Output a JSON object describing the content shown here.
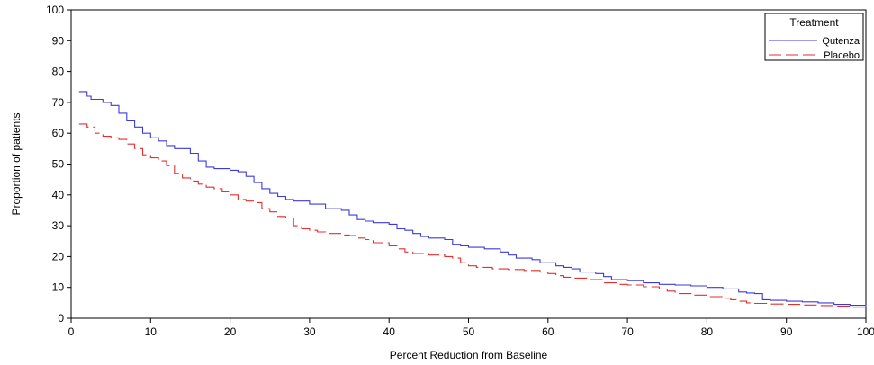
{
  "chart_data": {
    "type": "line",
    "title": "",
    "xlabel": "Percent Reduction from Baseline",
    "ylabel": "Proportion of patients",
    "xlim": [
      0,
      100
    ],
    "ylim": [
      0,
      100
    ],
    "x_ticks": [
      0,
      10,
      20,
      30,
      40,
      50,
      60,
      70,
      80,
      90,
      100
    ],
    "y_ticks": [
      0,
      10,
      20,
      30,
      40,
      50,
      60,
      70,
      80,
      90,
      100
    ],
    "grid": false,
    "legend": {
      "title": "Treatment",
      "placement": "top-right"
    },
    "series": [
      {
        "name": "Qutenza",
        "color": "#3b3bdc",
        "dash": "solid",
        "points": [
          [
            1,
            73.5
          ],
          [
            2,
            72
          ],
          [
            2.5,
            71
          ],
          [
            4,
            70
          ],
          [
            5,
            69
          ],
          [
            6,
            66.5
          ],
          [
            7,
            64
          ],
          [
            8,
            62
          ],
          [
            9,
            60
          ],
          [
            10,
            58.5
          ],
          [
            11,
            57.5
          ],
          [
            12,
            56
          ],
          [
            13,
            55
          ],
          [
            15,
            53.5
          ],
          [
            16,
            51
          ],
          [
            17,
            49
          ],
          [
            18,
            48.5
          ],
          [
            20,
            48
          ],
          [
            21,
            47.5
          ],
          [
            22,
            46
          ],
          [
            23,
            44
          ],
          [
            24,
            42
          ],
          [
            25,
            40.5
          ],
          [
            26,
            39.5
          ],
          [
            27,
            38.5
          ],
          [
            28,
            38
          ],
          [
            30,
            37
          ],
          [
            32,
            35.5
          ],
          [
            34,
            35
          ],
          [
            35,
            33.5
          ],
          [
            36,
            32
          ],
          [
            37,
            31.5
          ],
          [
            38,
            31
          ],
          [
            40,
            30.5
          ],
          [
            41,
            29
          ],
          [
            42,
            28.5
          ],
          [
            43,
            27.5
          ],
          [
            44,
            26.5
          ],
          [
            45,
            26
          ],
          [
            47,
            25.5
          ],
          [
            48,
            24
          ],
          [
            49,
            23.5
          ],
          [
            50,
            23
          ],
          [
            52,
            22.5
          ],
          [
            54,
            21.5
          ],
          [
            55,
            20.5
          ],
          [
            56,
            19.5
          ],
          [
            58,
            19
          ],
          [
            59,
            18
          ],
          [
            61,
            17
          ],
          [
            62,
            16.5
          ],
          [
            63,
            16
          ],
          [
            64,
            15
          ],
          [
            66,
            14.5
          ],
          [
            67,
            13.5
          ],
          [
            68,
            12.5
          ],
          [
            70,
            12.2
          ],
          [
            72,
            11.5
          ],
          [
            74,
            11
          ],
          [
            76,
            10.8
          ],
          [
            78,
            10.5
          ],
          [
            80,
            10
          ],
          [
            82,
            9.5
          ],
          [
            84,
            8.5
          ],
          [
            85,
            8.2
          ],
          [
            86,
            8
          ],
          [
            87,
            6
          ],
          [
            88,
            5.8
          ],
          [
            90,
            5.5
          ],
          [
            92,
            5.3
          ],
          [
            94,
            5
          ],
          [
            96,
            4.5
          ],
          [
            98,
            4.2
          ],
          [
            100,
            3.8
          ]
        ]
      },
      {
        "name": "Placebo",
        "color": "#e03030",
        "dash": "dashed",
        "points": [
          [
            1,
            63
          ],
          [
            2,
            62
          ],
          [
            3,
            60
          ],
          [
            4,
            59
          ],
          [
            5,
            58.5
          ],
          [
            6,
            58
          ],
          [
            7,
            56.5
          ],
          [
            8,
            55
          ],
          [
            9,
            53
          ],
          [
            10,
            52
          ],
          [
            11,
            51
          ],
          [
            12,
            49.5
          ],
          [
            13,
            47
          ],
          [
            14,
            45.5
          ],
          [
            15,
            44.5
          ],
          [
            16,
            43.5
          ],
          [
            17,
            42.5
          ],
          [
            18,
            42
          ],
          [
            19,
            41
          ],
          [
            20,
            40
          ],
          [
            21,
            38.5
          ],
          [
            22,
            38
          ],
          [
            23,
            37.5
          ],
          [
            24,
            35.5
          ],
          [
            25,
            34.5
          ],
          [
            26,
            33
          ],
          [
            27,
            32.5
          ],
          [
            28,
            30
          ],
          [
            29,
            29
          ],
          [
            30,
            28.5
          ],
          [
            31,
            28
          ],
          [
            32,
            27.5
          ],
          [
            34,
            27
          ],
          [
            35,
            26.8
          ],
          [
            36,
            26
          ],
          [
            37,
            25.5
          ],
          [
            38,
            24.5
          ],
          [
            40,
            23.5
          ],
          [
            41,
            22.5
          ],
          [
            42,
            21.5
          ],
          [
            43,
            21
          ],
          [
            45,
            20.5
          ],
          [
            47,
            20
          ],
          [
            48,
            19.5
          ],
          [
            49,
            18
          ],
          [
            50,
            17
          ],
          [
            51,
            16.5
          ],
          [
            53,
            16
          ],
          [
            55,
            15.8
          ],
          [
            57,
            15.5
          ],
          [
            59,
            15
          ],
          [
            60,
            14.5
          ],
          [
            61,
            13.8
          ],
          [
            62,
            13.3
          ],
          [
            63,
            13
          ],
          [
            65,
            12.5
          ],
          [
            67,
            11.5
          ],
          [
            69,
            11
          ],
          [
            70,
            10.8
          ],
          [
            72,
            10.2
          ],
          [
            74,
            9.5
          ],
          [
            75,
            8.8
          ],
          [
            76,
            8
          ],
          [
            78,
            7.5
          ],
          [
            80,
            7
          ],
          [
            82,
            6.5
          ],
          [
            83,
            6
          ],
          [
            84,
            5.5
          ],
          [
            85,
            5
          ],
          [
            86,
            4.8
          ],
          [
            88,
            4.6
          ],
          [
            90,
            4.5
          ],
          [
            92,
            4.3
          ],
          [
            94,
            4.1
          ],
          [
            96,
            3.9
          ],
          [
            98,
            3.6
          ],
          [
            100,
            3.3
          ]
        ]
      }
    ]
  }
}
